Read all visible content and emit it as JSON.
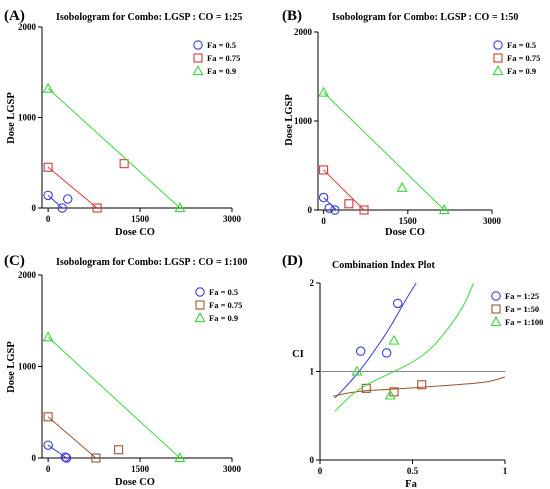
{
  "chart_data": [
    {
      "panel": "(A)",
      "type": "scatter",
      "title": "Isobologram for Combo: LGSP : CO = 1:25",
      "xlabel": "Dose CO",
      "ylabel": "Dose LGSP",
      "xlim": [
        -100,
        3000
      ],
      "ylim": [
        0,
        2000
      ],
      "xticks": [
        0,
        1500,
        3000
      ],
      "xtick_labels": [
        "0",
        "1500",
        "3000"
      ],
      "yticks": [
        0,
        1000,
        2000
      ],
      "ytick_labels": [
        "0",
        "1000",
        "2000"
      ],
      "legend_position": "top-right",
      "series": [
        {
          "name": "Fa = 0.5",
          "color": "#3a3ad8",
          "marker": "circle",
          "line": [
            [
              0,
              140
            ],
            [
              230,
              0
            ]
          ],
          "points": [
            [
              0,
              140
            ],
            [
              230,
              0
            ],
            [
              320,
              100
            ]
          ]
        },
        {
          "name": "Fa = 0.75",
          "color": "#d83a3a",
          "marker": "square",
          "line": [
            [
              0,
              450
            ],
            [
              800,
              0
            ]
          ],
          "points": [
            [
              0,
              450
            ],
            [
              800,
              0
            ],
            [
              1240,
              490
            ]
          ]
        },
        {
          "name": "Fa = 0.9",
          "color": "#3ad83a",
          "marker": "triangle",
          "line": [
            [
              0,
              1320
            ],
            [
              2150,
              0
            ]
          ],
          "points": [
            [
              0,
              1320
            ],
            [
              2150,
              0
            ]
          ]
        }
      ]
    },
    {
      "panel": "(B)",
      "type": "scatter",
      "title": "Isobologram for Combo: LGSP : CO = 1:50",
      "xlabel": "Dose CO",
      "ylabel": "Dose LGSP",
      "xlim": [
        -100,
        3000
      ],
      "ylim": [
        0,
        2000
      ],
      "xticks": [
        0,
        1500,
        3000
      ],
      "xtick_labels": [
        "0",
        "1500",
        "3000"
      ],
      "yticks": [
        0,
        1000,
        2000
      ],
      "ytick_labels": [
        "0",
        "1000",
        "2000"
      ],
      "legend_position": "top-right",
      "series": [
        {
          "name": "Fa = 0.5",
          "color": "#3a3ad8",
          "marker": "circle",
          "line": [
            [
              0,
              140
            ],
            [
              230,
              0
            ]
          ],
          "points": [
            [
              0,
              140
            ],
            [
              100,
              20
            ],
            [
              200,
              0
            ]
          ]
        },
        {
          "name": "Fa = 0.75",
          "color": "#d83a3a",
          "marker": "square",
          "line": [
            [
              0,
              450
            ],
            [
              720,
              0
            ]
          ],
          "points": [
            [
              0,
              450
            ],
            [
              450,
              70
            ],
            [
              720,
              0
            ]
          ]
        },
        {
          "name": "Fa = 0.9",
          "color": "#3ad83a",
          "marker": "triangle",
          "line": [
            [
              0,
              1320
            ],
            [
              2150,
              0
            ]
          ],
          "points": [
            [
              0,
              1320
            ],
            [
              1400,
              250
            ],
            [
              2150,
              0
            ]
          ]
        }
      ]
    },
    {
      "panel": "(C)",
      "type": "scatter",
      "title": "Isobologram for Combo: LGSP : CO = 1:100",
      "xlabel": "Dose CO",
      "ylabel": "Dose LGSP",
      "xlim": [
        -100,
        3000
      ],
      "ylim": [
        0,
        2000
      ],
      "xticks": [
        0,
        1500,
        3000
      ],
      "xtick_labels": [
        "0",
        "1500",
        "3000"
      ],
      "yticks": [
        0,
        1000,
        2000
      ],
      "ytick_labels": [
        "0",
        "1000",
        "2000"
      ],
      "legend_position": "top-right",
      "series": [
        {
          "name": "Fa = 0.5",
          "color": "#3a3ad8",
          "marker": "circle",
          "line": [
            [
              0,
              140
            ],
            [
              300,
              0
            ]
          ],
          "points": [
            [
              0,
              140
            ],
            [
              280,
              10
            ],
            [
              300,
              0
            ]
          ]
        },
        {
          "name": "Fa = 0.75",
          "color": "#a0522d",
          "marker": "square",
          "line": [
            [
              0,
              450
            ],
            [
              780,
              0
            ]
          ],
          "points": [
            [
              0,
              450
            ],
            [
              780,
              0
            ],
            [
              1150,
              90
            ]
          ]
        },
        {
          "name": "Fa = 0.9",
          "color": "#3ad83a",
          "marker": "triangle",
          "line": [
            [
              0,
              1320
            ],
            [
              2150,
              0
            ]
          ],
          "points": [
            [
              0,
              1320
            ],
            [
              2150,
              0
            ]
          ]
        }
      ]
    },
    {
      "panel": "(D)",
      "type": "scatter",
      "title": "Combination Index Plot",
      "xlabel": "Fa",
      "ylabel": "CI",
      "xlim": [
        0,
        1
      ],
      "ylim": [
        0,
        2
      ],
      "xticks": [
        0,
        0.5,
        1
      ],
      "xtick_labels": [
        "0",
        "0.5",
        "1"
      ],
      "yticks": [
        0,
        1,
        2
      ],
      "ytick_labels": [
        "0",
        "1",
        "2"
      ],
      "reference_line": 1,
      "legend_position": "top-right",
      "series": [
        {
          "name": "Fa = 1:25",
          "color": "#3a3ad8",
          "marker": "circle",
          "points": [
            [
              0.22,
              1.23
            ],
            [
              0.36,
              1.21
            ],
            [
              0.42,
              1.77
            ]
          ],
          "curve": [
            [
              0.08,
              0.7
            ],
            [
              0.15,
              0.85
            ],
            [
              0.22,
              1.02
            ],
            [
              0.3,
              1.25
            ],
            [
              0.38,
              1.5
            ],
            [
              0.46,
              1.8
            ],
            [
              0.52,
              2.0
            ]
          ]
        },
        {
          "name": "Fa = 1:50",
          "color": "#a0522d",
          "marker": "square",
          "points": [
            [
              0.25,
              0.81
            ],
            [
              0.4,
              0.77
            ],
            [
              0.55,
              0.85
            ]
          ],
          "curve": [
            [
              0.07,
              0.72
            ],
            [
              0.2,
              0.78
            ],
            [
              0.4,
              0.8
            ],
            [
              0.6,
              0.83
            ],
            [
              0.8,
              0.86
            ],
            [
              0.9,
              0.88
            ],
            [
              0.96,
              0.91
            ],
            [
              1.0,
              0.94
            ]
          ]
        },
        {
          "name": "Fa = 1:100",
          "color": "#3ad83a",
          "marker": "triangle",
          "points": [
            [
              0.2,
              1.0
            ],
            [
              0.38,
              0.73
            ],
            [
              0.4,
              1.35
            ]
          ],
          "curve": [
            [
              0.08,
              0.55
            ],
            [
              0.2,
              0.8
            ],
            [
              0.35,
              0.95
            ],
            [
              0.5,
              1.1
            ],
            [
              0.6,
              1.25
            ],
            [
              0.7,
              1.5
            ],
            [
              0.78,
              1.75
            ],
            [
              0.83,
              2.0
            ]
          ]
        }
      ]
    }
  ]
}
